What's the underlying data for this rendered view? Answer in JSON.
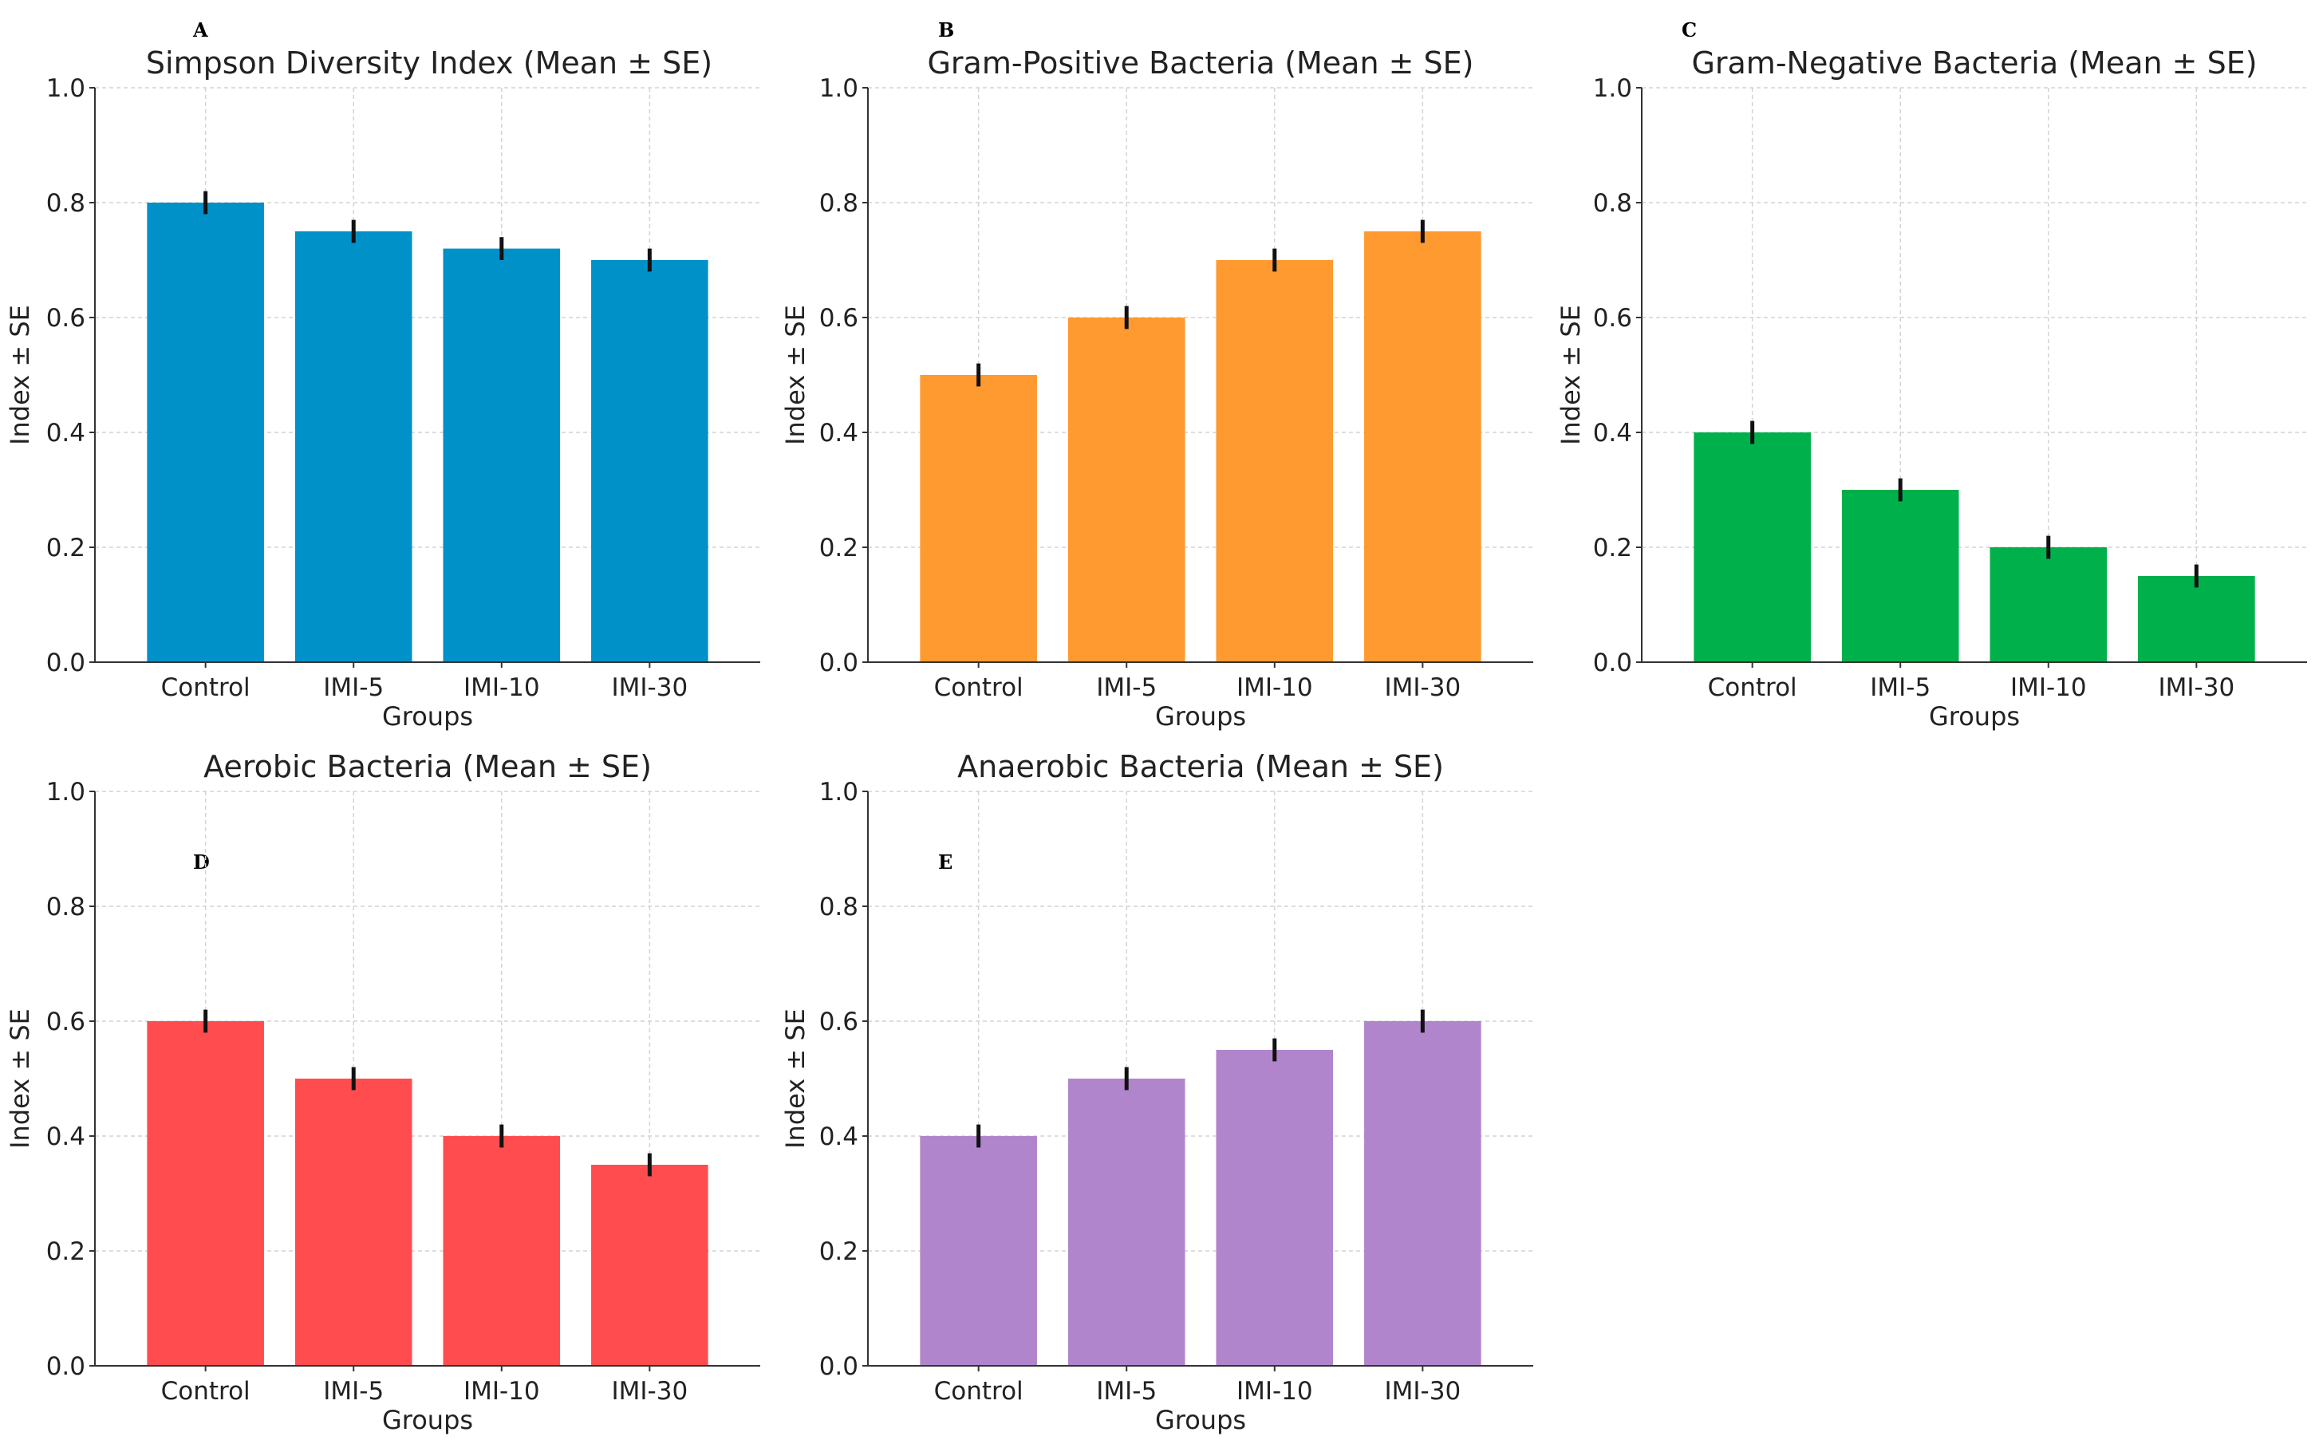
{
  "chart_data": [
    {
      "type": "bar",
      "panel_label": "A",
      "title": "Simpson Diversity Index (Mean ± SE)",
      "xlabel": "Groups",
      "ylabel": "Index ± SE",
      "categories": [
        "Control",
        "IMI-5",
        "IMI-10",
        "IMI-30"
      ],
      "values": [
        0.8,
        0.75,
        0.72,
        0.7
      ],
      "errors": [
        0.02,
        0.02,
        0.02,
        0.02
      ],
      "ylim": [
        0,
        1.0
      ],
      "yticks": [
        "0.0",
        "0.2",
        "0.4",
        "0.6",
        "0.8",
        "1.0"
      ],
      "grid": true,
      "color": "#0091c8"
    },
    {
      "type": "bar",
      "panel_label": "B",
      "title": "Gram-Positive Bacteria (Mean ± SE)",
      "xlabel": "Groups",
      "ylabel": "Index ± SE",
      "categories": [
        "Control",
        "IMI-5",
        "IMI-10",
        "IMI-30"
      ],
      "values": [
        0.5,
        0.6,
        0.7,
        0.75
      ],
      "errors": [
        0.02,
        0.02,
        0.02,
        0.02
      ],
      "ylim": [
        0,
        1.0
      ],
      "yticks": [
        "0.0",
        "0.2",
        "0.4",
        "0.6",
        "0.8",
        "1.0"
      ],
      "grid": true,
      "color": "#ff9a30"
    },
    {
      "type": "bar",
      "panel_label": "C",
      "title": "Gram-Negative Bacteria (Mean ± SE)",
      "xlabel": "Groups",
      "ylabel": "Index ± SE",
      "categories": [
        "Control",
        "IMI-5",
        "IMI-10",
        "IMI-30"
      ],
      "values": [
        0.4,
        0.3,
        0.2,
        0.15
      ],
      "errors": [
        0.02,
        0.02,
        0.02,
        0.02
      ],
      "ylim": [
        0,
        1.0
      ],
      "yticks": [
        "0.0",
        "0.2",
        "0.4",
        "0.6",
        "0.8",
        "1.0"
      ],
      "grid": true,
      "color": "#00b04a"
    },
    {
      "type": "bar",
      "panel_label": "D",
      "title": "Aerobic Bacteria (Mean ± SE)",
      "xlabel": "Groups",
      "ylabel": "Index ± SE",
      "categories": [
        "Control",
        "IMI-5",
        "IMI-10",
        "IMI-30"
      ],
      "values": [
        0.6,
        0.5,
        0.4,
        0.35
      ],
      "errors": [
        0.02,
        0.02,
        0.02,
        0.02
      ],
      "ylim": [
        0,
        1.0
      ],
      "yticks": [
        "0.0",
        "0.2",
        "0.4",
        "0.6",
        "0.8",
        "1.0"
      ],
      "grid": true,
      "color": "#ff4d4f"
    },
    {
      "type": "bar",
      "panel_label": "E",
      "title": "Anaerobic Bacteria (Mean ± SE)",
      "xlabel": "Groups",
      "ylabel": "Index ± SE",
      "categories": [
        "Control",
        "IMI-5",
        "IMI-10",
        "IMI-30"
      ],
      "values": [
        0.4,
        0.5,
        0.55,
        0.6
      ],
      "errors": [
        0.02,
        0.02,
        0.02,
        0.02
      ],
      "ylim": [
        0,
        1.0
      ],
      "yticks": [
        "0.0",
        "0.2",
        "0.4",
        "0.6",
        "0.8",
        "1.0"
      ],
      "grid": true,
      "color": "#b185cc"
    }
  ]
}
